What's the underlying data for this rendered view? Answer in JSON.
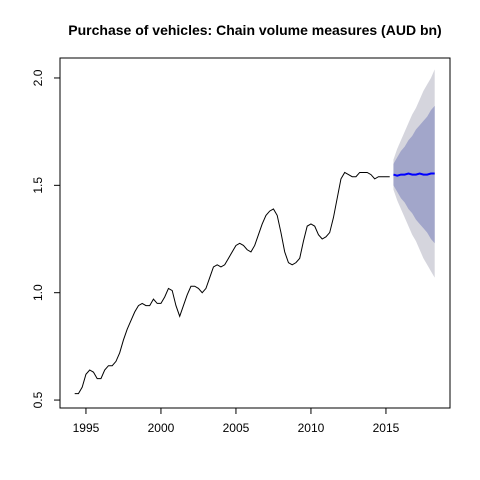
{
  "chart_data": {
    "type": "line",
    "title": "Purchase of vehicles: Chain volume measures (AUD bn)",
    "x": [
      1994.25,
      1994.5,
      1994.75,
      1995,
      1995.25,
      1995.5,
      1995.75,
      1996,
      1996.25,
      1996.5,
      1996.75,
      1997,
      1997.25,
      1997.5,
      1997.75,
      1998,
      1998.25,
      1998.5,
      1998.75,
      1999,
      1999.25,
      1999.5,
      1999.75,
      2000,
      2000.25,
      2000.5,
      2000.75,
      2001,
      2001.25,
      2001.5,
      2001.75,
      2002,
      2002.25,
      2002.5,
      2002.75,
      2003,
      2003.25,
      2003.5,
      2003.75,
      2004,
      2004.25,
      2004.5,
      2004.75,
      2005,
      2005.25,
      2005.5,
      2005.75,
      2006,
      2006.25,
      2006.5,
      2006.75,
      2007,
      2007.25,
      2007.5,
      2007.75,
      2008,
      2008.25,
      2008.5,
      2008.75,
      2009,
      2009.25,
      2009.5,
      2009.75,
      2010,
      2010.25,
      2010.5,
      2010.75,
      2011,
      2011.25,
      2011.5,
      2011.75,
      2012,
      2012.25,
      2012.5,
      2012.75,
      2013,
      2013.25,
      2013.5,
      2013.75,
      2014,
      2014.25,
      2014.5,
      2014.75,
      2015,
      2015.25
    ],
    "series": [
      {
        "color": "#000000",
        "values": [
          0.53,
          0.53,
          0.56,
          0.62,
          0.64,
          0.63,
          0.6,
          0.6,
          0.64,
          0.66,
          0.66,
          0.68,
          0.72,
          0.78,
          0.83,
          0.87,
          0.91,
          0.94,
          0.95,
          0.94,
          0.94,
          0.97,
          0.95,
          0.95,
          0.98,
          1.02,
          1.01,
          0.94,
          0.89,
          0.94,
          0.99,
          1.03,
          1.03,
          1.02,
          1.0,
          1.02,
          1.07,
          1.12,
          1.13,
          1.12,
          1.13,
          1.16,
          1.19,
          1.22,
          1.23,
          1.22,
          1.2,
          1.19,
          1.22,
          1.27,
          1.32,
          1.36,
          1.38,
          1.39,
          1.36,
          1.28,
          1.19,
          1.14,
          1.13,
          1.14,
          1.16,
          1.24,
          1.31,
          1.32,
          1.31,
          1.27,
          1.25,
          1.26,
          1.28,
          1.35,
          1.44,
          1.53,
          1.56,
          1.55,
          1.54,
          1.54,
          1.56,
          1.56,
          1.56,
          1.55,
          1.53,
          1.54,
          1.54,
          1.54,
          1.54
        ]
      }
    ],
    "forecast": {
      "color": "#0000ff",
      "x": [
        2015.5,
        2015.75,
        2016,
        2016.25,
        2016.5,
        2016.75,
        2017,
        2017.25,
        2017.5,
        2017.75,
        2018,
        2018.25
      ],
      "values": [
        1.55,
        1.545,
        1.55,
        1.55,
        1.555,
        1.55,
        1.55,
        1.555,
        1.55,
        1.55,
        1.555,
        1.555
      ],
      "intervals": [
        {
          "color": "#d5d5dd",
          "lower": [
            1.48,
            1.43,
            1.39,
            1.35,
            1.31,
            1.27,
            1.24,
            1.2,
            1.16,
            1.13,
            1.1,
            1.07
          ],
          "upper": [
            1.62,
            1.67,
            1.71,
            1.75,
            1.79,
            1.83,
            1.86,
            1.9,
            1.94,
            1.97,
            2.0,
            2.04
          ]
        },
        {
          "color": "#a2a6ca",
          "lower": [
            1.5,
            1.47,
            1.44,
            1.42,
            1.39,
            1.37,
            1.34,
            1.32,
            1.3,
            1.28,
            1.25,
            1.23
          ],
          "upper": [
            1.6,
            1.63,
            1.66,
            1.68,
            1.71,
            1.73,
            1.76,
            1.78,
            1.8,
            1.82,
            1.85,
            1.87
          ]
        }
      ]
    },
    "xlim": [
      1993.27,
      2019.27
    ],
    "ylim": [
      0.463,
      2.093
    ],
    "xticks": [
      1995,
      2000,
      2005,
      2010,
      2015
    ],
    "yticks": [
      {
        "value": 0.5,
        "label": "0.5"
      },
      {
        "value": 1.0,
        "label": "1.0"
      },
      1.5,
      {
        "value": 2.0,
        "label": "2.0"
      }
    ]
  }
}
